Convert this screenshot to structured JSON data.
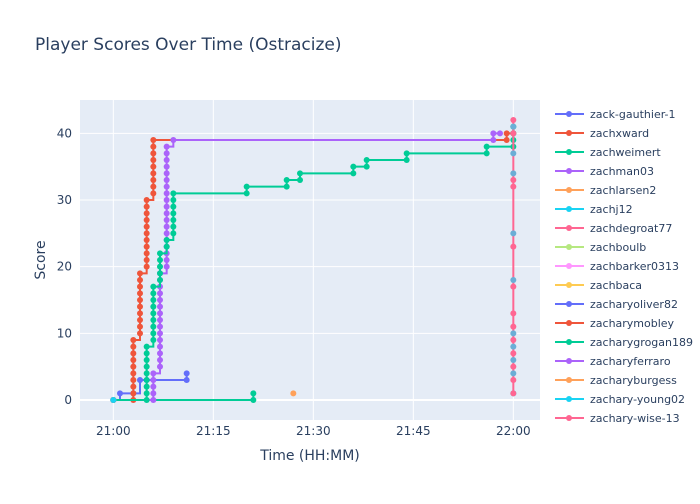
{
  "chart_data": {
    "type": "line",
    "title": "Player Scores Over Time (Ostracize)",
    "xlabel": "Time (HH:MM)",
    "ylabel": "Score",
    "x_range": [
      "20:55",
      "22:04"
    ],
    "y_range": [
      -3,
      45
    ],
    "x_ticks": [
      {
        "t": "21:00",
        "label": "21:00"
      },
      {
        "t": "21:15",
        "label": "21:15"
      },
      {
        "t": "21:30",
        "label": "21:30"
      },
      {
        "t": "21:45",
        "label": "21:45"
      },
      {
        "t": "22:00",
        "label": "22:00"
      }
    ],
    "y_ticks": [
      0,
      10,
      20,
      30,
      40
    ],
    "grid": true,
    "legend_position": "right",
    "series": [
      {
        "name": "zack-gauthier-1",
        "color": "#636efa",
        "line": true,
        "points": [
          [
            "21:00",
            0
          ],
          [
            "21:01",
            1
          ],
          [
            "21:03",
            1
          ],
          [
            "21:04",
            3
          ],
          [
            "21:05",
            3
          ],
          [
            "21:11",
            3
          ],
          [
            "21:11",
            4
          ]
        ]
      },
      {
        "name": "zachxward",
        "color": "#ef553b",
        "line": true,
        "points": [
          [
            "21:00",
            0
          ],
          [
            "21:03",
            0
          ],
          [
            "21:03",
            1
          ],
          [
            "21:03",
            2
          ],
          [
            "21:03",
            3
          ],
          [
            "21:03",
            4
          ],
          [
            "21:03",
            5
          ],
          [
            "21:03",
            6
          ],
          [
            "21:03",
            7
          ],
          [
            "21:03",
            8
          ],
          [
            "21:03",
            9
          ],
          [
            "21:04",
            10
          ],
          [
            "21:04",
            11
          ],
          [
            "21:04",
            12
          ],
          [
            "21:04",
            13
          ],
          [
            "21:04",
            14
          ],
          [
            "21:04",
            15
          ],
          [
            "21:04",
            16
          ],
          [
            "21:04",
            17
          ],
          [
            "21:04",
            18
          ],
          [
            "21:04",
            19
          ],
          [
            "21:05",
            20
          ],
          [
            "21:05",
            21
          ],
          [
            "21:05",
            22
          ],
          [
            "21:05",
            23
          ],
          [
            "21:05",
            24
          ],
          [
            "21:05",
            25
          ],
          [
            "21:05",
            26
          ],
          [
            "21:05",
            27
          ],
          [
            "21:05",
            28
          ],
          [
            "21:05",
            29
          ],
          [
            "21:05",
            30
          ],
          [
            "21:06",
            31
          ],
          [
            "21:06",
            32
          ],
          [
            "21:06",
            33
          ],
          [
            "21:06",
            34
          ],
          [
            "21:06",
            35
          ],
          [
            "21:06",
            36
          ],
          [
            "21:06",
            37
          ],
          [
            "21:06",
            38
          ],
          [
            "21:06",
            39
          ],
          [
            "21:59",
            39
          ],
          [
            "21:59",
            40
          ],
          [
            "22:00",
            40
          ]
        ]
      },
      {
        "name": "zachweimert",
        "color": "#00cc96",
        "line": true,
        "points": [
          [
            "21:00",
            0
          ],
          [
            "21:21",
            0
          ],
          [
            "21:21",
            1
          ]
        ]
      },
      {
        "name": "zachman03",
        "color": "#ab63fa",
        "line": true,
        "points": [
          [
            "21:00",
            0
          ],
          [
            "21:06",
            0
          ],
          [
            "21:06",
            1
          ],
          [
            "21:06",
            2
          ],
          [
            "21:06",
            3
          ],
          [
            "21:06",
            4
          ],
          [
            "21:07",
            5
          ],
          [
            "21:07",
            6
          ],
          [
            "21:07",
            7
          ],
          [
            "21:07",
            8
          ],
          [
            "21:07",
            9
          ],
          [
            "21:07",
            10
          ],
          [
            "21:07",
            11
          ],
          [
            "21:07",
            12
          ],
          [
            "21:07",
            13
          ],
          [
            "21:07",
            14
          ],
          [
            "21:07",
            15
          ],
          [
            "21:07",
            16
          ],
          [
            "21:07",
            17
          ],
          [
            "21:07",
            18
          ],
          [
            "21:07",
            19
          ],
          [
            "21:08",
            20
          ],
          [
            "21:08",
            21
          ],
          [
            "21:08",
            22
          ],
          [
            "21:08",
            23
          ],
          [
            "21:08",
            24
          ],
          [
            "21:08",
            25
          ],
          [
            "21:08",
            26
          ],
          [
            "21:08",
            27
          ],
          [
            "21:08",
            28
          ],
          [
            "21:08",
            29
          ],
          [
            "21:08",
            30
          ],
          [
            "21:08",
            31
          ],
          [
            "21:08",
            32
          ],
          [
            "21:08",
            33
          ],
          [
            "21:08",
            34
          ],
          [
            "21:08",
            35
          ],
          [
            "21:08",
            36
          ],
          [
            "21:08",
            37
          ],
          [
            "21:08",
            38
          ],
          [
            "21:09",
            39
          ],
          [
            "21:57",
            39
          ],
          [
            "21:57",
            40
          ],
          [
            "21:58",
            40
          ]
        ]
      },
      {
        "name": "zachlarsen2",
        "color": "#ffa15a",
        "line": false,
        "points": [
          [
            "21:00",
            0
          ],
          [
            "21:27",
            1
          ]
        ]
      },
      {
        "name": "zachj12",
        "color": "#19d3f3",
        "line": false,
        "points": [
          [
            "21:00",
            0
          ],
          [
            "22:00",
            1
          ]
        ]
      },
      {
        "name": "zachdegroat77",
        "color": "#ff6692",
        "line": false,
        "points": [
          [
            "21:00",
            0
          ]
        ]
      },
      {
        "name": "zachboulb",
        "color": "#b6e880",
        "line": false,
        "points": [
          [
            "21:00",
            0
          ]
        ]
      },
      {
        "name": "zachbarker0313",
        "color": "#ff97ff",
        "line": false,
        "points": [
          [
            "21:00",
            0
          ]
        ]
      },
      {
        "name": "zachbaca",
        "color": "#fecb52",
        "line": false,
        "points": [
          [
            "21:00",
            0
          ]
        ]
      },
      {
        "name": "zacharyoliver82",
        "color": "#636efa",
        "line": false,
        "points": [
          [
            "21:00",
            0
          ]
        ]
      },
      {
        "name": "zacharymobley",
        "color": "#ef553b",
        "line": false,
        "points": [
          [
            "21:00",
            0
          ]
        ]
      },
      {
        "name": "zacharygrogan189",
        "color": "#00cc96",
        "line": true,
        "points": [
          [
            "21:00",
            0
          ],
          [
            "21:05",
            0
          ],
          [
            "21:05",
            1
          ],
          [
            "21:05",
            2
          ],
          [
            "21:05",
            3
          ],
          [
            "21:05",
            4
          ],
          [
            "21:05",
            5
          ],
          [
            "21:05",
            6
          ],
          [
            "21:05",
            7
          ],
          [
            "21:05",
            8
          ],
          [
            "21:06",
            9
          ],
          [
            "21:06",
            10
          ],
          [
            "21:06",
            11
          ],
          [
            "21:06",
            12
          ],
          [
            "21:06",
            13
          ],
          [
            "21:06",
            14
          ],
          [
            "21:06",
            15
          ],
          [
            "21:06",
            16
          ],
          [
            "21:06",
            17
          ],
          [
            "21:07",
            18
          ],
          [
            "21:07",
            19
          ],
          [
            "21:07",
            20
          ],
          [
            "21:07",
            21
          ],
          [
            "21:07",
            22
          ],
          [
            "21:08",
            23
          ],
          [
            "21:08",
            24
          ],
          [
            "21:09",
            25
          ],
          [
            "21:09",
            26
          ],
          [
            "21:09",
            27
          ],
          [
            "21:09",
            28
          ],
          [
            "21:09",
            29
          ],
          [
            "21:09",
            30
          ],
          [
            "21:09",
            31
          ],
          [
            "21:20",
            31
          ],
          [
            "21:20",
            32
          ],
          [
            "21:26",
            32
          ],
          [
            "21:26",
            33
          ],
          [
            "21:28",
            33
          ],
          [
            "21:28",
            34
          ],
          [
            "21:36",
            34
          ],
          [
            "21:36",
            35
          ],
          [
            "21:38",
            35
          ],
          [
            "21:38",
            36
          ],
          [
            "21:44",
            36
          ],
          [
            "21:44",
            37
          ],
          [
            "21:56",
            37
          ],
          [
            "21:56",
            38
          ],
          [
            "22:00",
            38
          ],
          [
            "22:00",
            39
          ],
          [
            "22:00",
            40
          ],
          [
            "22:00",
            41
          ]
        ]
      },
      {
        "name": "zacharyferraro",
        "color": "#ab63fa",
        "line": false,
        "points": [
          [
            "21:00",
            0
          ]
        ]
      },
      {
        "name": "zacharyburgess",
        "color": "#ffa15a",
        "line": false,
        "points": [
          [
            "21:00",
            0
          ]
        ]
      },
      {
        "name": "zachary-young02",
        "color": "#19d3f3",
        "line": false,
        "points": [
          [
            "21:00",
            0
          ]
        ]
      },
      {
        "name": "zachary-wise-13",
        "color": "#ff6692",
        "line": true,
        "points": [
          [
            "22:00",
            1
          ],
          [
            "22:00",
            3
          ],
          [
            "22:00",
            5
          ],
          [
            "22:00",
            7
          ],
          [
            "22:00",
            9
          ],
          [
            "22:00",
            11
          ],
          [
            "22:00",
            13
          ],
          [
            "22:00",
            17
          ],
          [
            "22:00",
            23
          ],
          [
            "22:00",
            32
          ],
          [
            "22:00",
            33
          ],
          [
            "22:00",
            40
          ],
          [
            "22:00",
            42
          ]
        ]
      },
      {
        "name": "",
        "color": "#6baed6",
        "line": false,
        "points": [
          [
            "22:00",
            4
          ],
          [
            "22:00",
            6
          ],
          [
            "22:00",
            8
          ],
          [
            "22:00",
            10
          ],
          [
            "22:00",
            18
          ],
          [
            "22:00",
            25
          ],
          [
            "22:00",
            34
          ],
          [
            "22:00",
            37
          ],
          [
            "22:00",
            41
          ]
        ]
      }
    ]
  }
}
